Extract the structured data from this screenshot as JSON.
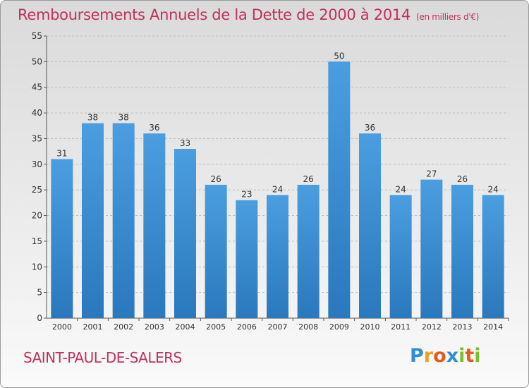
{
  "title": "Remboursements Annuels de la Dette de 2000 à 2014",
  "title_unit": "(en milliers d'€)",
  "location": "SAINT-PAUL-DE-SALERS",
  "logo": {
    "letters": [
      "P",
      "r",
      "o",
      "x",
      "i",
      "t",
      "i"
    ],
    "colors": [
      "#2f8fd4",
      "#f0a020",
      "#e85a1a",
      "#2f8fd4",
      "#7cbf2a",
      "#e85a1a",
      "#7cbf2a"
    ]
  },
  "chart_data": {
    "type": "bar",
    "categories": [
      "2000",
      "2001",
      "2002",
      "2003",
      "2004",
      "2005",
      "2006",
      "2007",
      "2008",
      "2009",
      "2010",
      "2011",
      "2012",
      "2013",
      "2014"
    ],
    "values": [
      31,
      38,
      38,
      36,
      33,
      26,
      23,
      24,
      26,
      50,
      36,
      24,
      27,
      26,
      24
    ],
    "ylim": [
      0,
      55
    ],
    "yticks": [
      0,
      5,
      10,
      15,
      20,
      25,
      30,
      35,
      40,
      45,
      50,
      55
    ],
    "grid": "horizontal-dashed",
    "bar_color": "#4a9ee0",
    "bar_color_dark": "#2a78bd"
  }
}
